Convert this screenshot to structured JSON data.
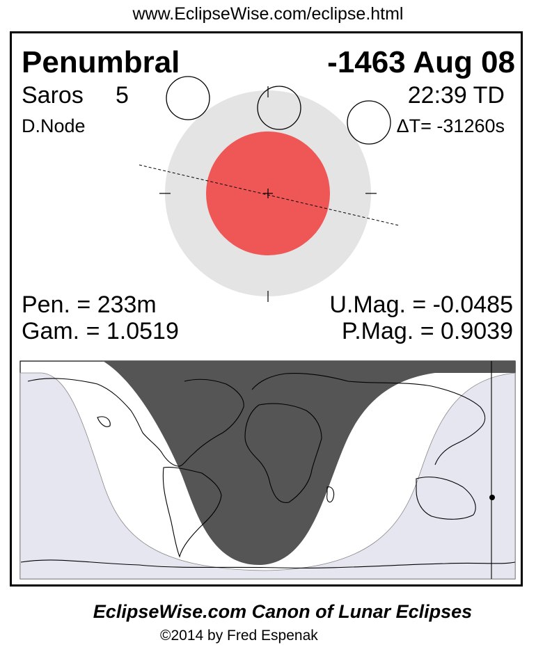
{
  "header": {
    "url": "www.EclipseWise.com/eclipse.html"
  },
  "eclipse": {
    "type": "Penumbral",
    "date": "-1463 Aug 08",
    "saros_label": "Saros",
    "saros_number": "5",
    "time": "22:39 TD",
    "node": "D.Node",
    "delta_t": "ΔT= -31260s",
    "pen_duration": "Pen. = 233m",
    "gamma": "Gam. = 1.0519",
    "umbral_mag": "U.Mag. = -0.0485",
    "penumbral_mag": "P.Mag. = 0.9039"
  },
  "colors": {
    "umbra": "#ef5656",
    "penumbra": "#e4e4e4",
    "night_shading": "#555555",
    "penumbral_zone": "#e6e6f0"
  },
  "footer": {
    "title": "EclipseWise.com Canon of Lunar Eclipses",
    "copyright": "©2014 by Fred Espenak"
  }
}
